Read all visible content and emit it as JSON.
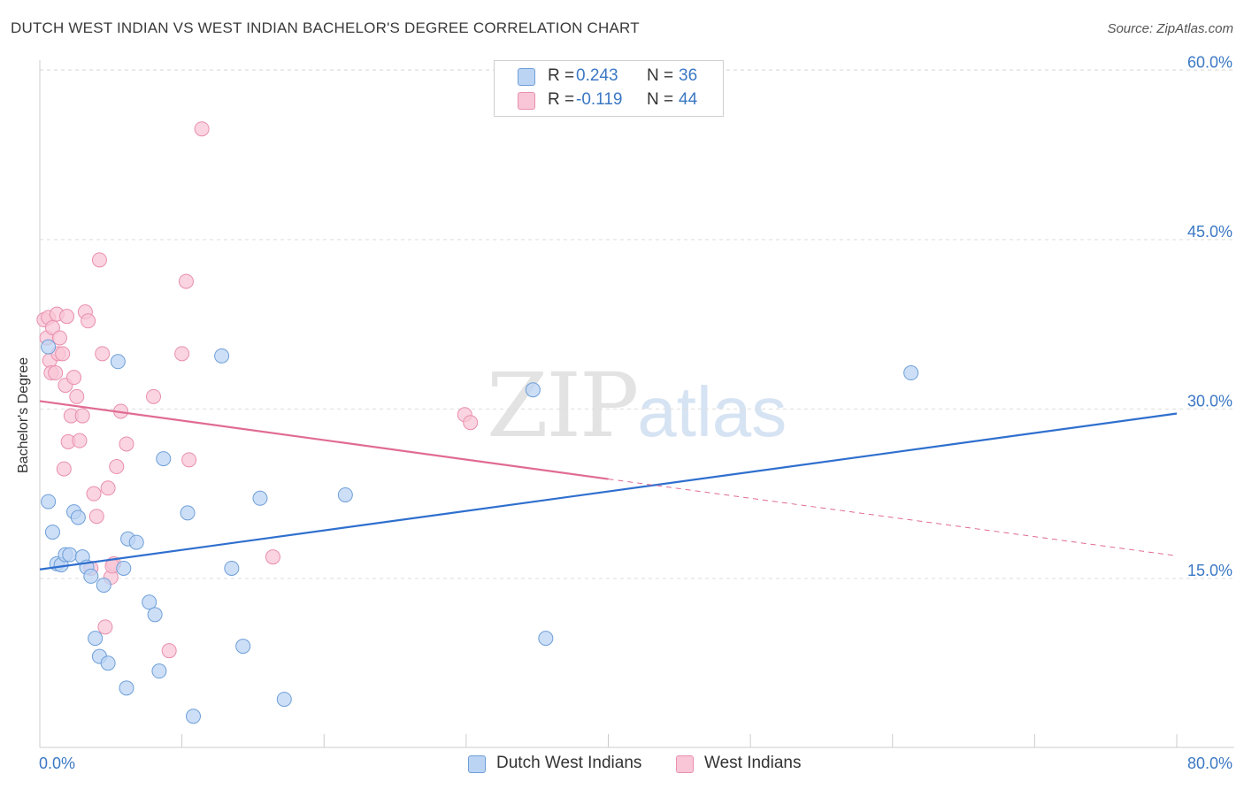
{
  "title": "DUTCH WEST INDIAN VS WEST INDIAN BACHELOR'S DEGREE CORRELATION CHART",
  "source": "Source: ZipAtlas.com",
  "watermark": {
    "zip": "ZIP",
    "atlas": "atlas"
  },
  "legend": {
    "series1": {
      "r_label": "R =",
      "r_value": "0.243",
      "n_label": "N =",
      "n_value": "36"
    },
    "series2": {
      "r_label": "R =",
      "r_value": "-0.119",
      "n_label": "N =",
      "n_value": "44"
    }
  },
  "colors": {
    "blue_fill": "#bcd4f4",
    "blue_stroke": "#6e9fd8",
    "blue_line": "#2f6fce",
    "pink_fill": "#f8c6d6",
    "pink_stroke": "#e98fae",
    "pink_line": "#e06b94",
    "axis_text": "#3b78c4",
    "grid": "#dddddd"
  },
  "chart_data": {
    "type": "scatter",
    "title": "DUTCH WEST INDIAN VS WEST INDIAN BACHELOR'S DEGREE CORRELATION CHART",
    "xlabel": "",
    "ylabel": "Bachelor's Degree",
    "xlim": [
      0,
      80
    ],
    "ylim": [
      0,
      63
    ],
    "x_tick_labels": [
      "0.0%",
      "80.0%"
    ],
    "y_ticks": [
      15,
      30,
      45,
      60
    ],
    "y_tick_labels": [
      "15.0%",
      "30.0%",
      "45.0%",
      "60.0%"
    ],
    "series": [
      {
        "name": "Dutch West Indians",
        "points": [
          [
            0.6,
            35.5
          ],
          [
            0.6,
            21.8
          ],
          [
            0.9,
            19.1
          ],
          [
            1.2,
            16.3
          ],
          [
            1.5,
            16.2
          ],
          [
            1.8,
            17.1
          ],
          [
            2.1,
            17.1
          ],
          [
            2.4,
            20.9
          ],
          [
            2.7,
            20.4
          ],
          [
            3.0,
            16.9
          ],
          [
            3.3,
            16.0
          ],
          [
            3.6,
            15.2
          ],
          [
            3.9,
            9.7
          ],
          [
            4.2,
            8.1
          ],
          [
            4.5,
            14.4
          ],
          [
            4.8,
            7.5
          ],
          [
            5.5,
            34.2
          ],
          [
            5.9,
            15.9
          ],
          [
            6.1,
            5.3
          ],
          [
            6.2,
            18.5
          ],
          [
            6.8,
            18.2
          ],
          [
            7.7,
            12.9
          ],
          [
            8.1,
            11.8
          ],
          [
            8.4,
            6.8
          ],
          [
            8.7,
            25.6
          ],
          [
            10.4,
            20.8
          ],
          [
            10.8,
            2.8
          ],
          [
            12.8,
            34.7
          ],
          [
            13.5,
            15.9
          ],
          [
            14.3,
            9.0
          ],
          [
            15.5,
            22.1
          ],
          [
            17.2,
            4.3
          ],
          [
            21.5,
            22.4
          ],
          [
            34.7,
            31.7
          ],
          [
            35.6,
            9.7
          ],
          [
            61.3,
            33.2
          ]
        ]
      },
      {
        "name": "West Indians",
        "points": [
          [
            0.3,
            37.9
          ],
          [
            0.5,
            36.3
          ],
          [
            0.6,
            38.1
          ],
          [
            0.7,
            34.3
          ],
          [
            0.8,
            33.2
          ],
          [
            0.9,
            37.2
          ],
          [
            1.1,
            33.2
          ],
          [
            1.2,
            38.4
          ],
          [
            1.3,
            34.9
          ],
          [
            1.4,
            36.3
          ],
          [
            1.6,
            34.9
          ],
          [
            1.7,
            24.7
          ],
          [
            1.8,
            32.1
          ],
          [
            1.9,
            38.2
          ],
          [
            2.0,
            27.1
          ],
          [
            2.2,
            29.4
          ],
          [
            2.4,
            32.8
          ],
          [
            2.6,
            31.1
          ],
          [
            2.8,
            27.2
          ],
          [
            3.0,
            29.4
          ],
          [
            3.2,
            38.6
          ],
          [
            3.4,
            37.8
          ],
          [
            3.6,
            15.9
          ],
          [
            3.8,
            22.5
          ],
          [
            4.0,
            20.5
          ],
          [
            4.2,
            43.2
          ],
          [
            4.4,
            34.9
          ],
          [
            4.6,
            10.7
          ],
          [
            4.8,
            23.0
          ],
          [
            5.0,
            15.1
          ],
          [
            5.2,
            16.3
          ],
          [
            5.4,
            24.9
          ],
          [
            5.7,
            29.8
          ],
          [
            6.1,
            26.9
          ],
          [
            8.0,
            31.1
          ],
          [
            9.1,
            8.6
          ],
          [
            10.0,
            34.9
          ],
          [
            10.3,
            41.3
          ],
          [
            10.5,
            25.5
          ],
          [
            11.4,
            54.8
          ],
          [
            16.4,
            16.9
          ],
          [
            29.9,
            29.5
          ],
          [
            30.3,
            28.8
          ],
          [
            5.1,
            16.1
          ]
        ]
      }
    ],
    "trendlines": [
      {
        "series": "Dutch West Indians",
        "x": [
          0,
          80
        ],
        "y": [
          15.8,
          29.6
        ],
        "style": "solid"
      },
      {
        "series": "West Indians",
        "x": [
          0,
          40
        ],
        "y": [
          30.7,
          23.8
        ],
        "style": "solid"
      },
      {
        "series": "West Indians",
        "x": [
          40,
          80
        ],
        "y": [
          23.8,
          17.0
        ],
        "style": "dashed"
      }
    ]
  },
  "bottom_legend": {
    "series1": "Dutch West Indians",
    "series2": "West Indians"
  }
}
